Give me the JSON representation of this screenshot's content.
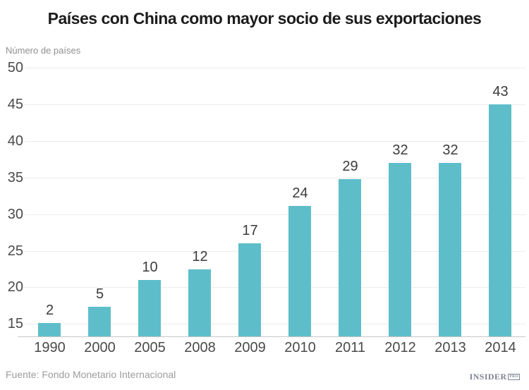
{
  "title": "Países con China como mayor socio de sus exportaciones",
  "chart_data": {
    "type": "bar",
    "categories": [
      "1990",
      "2000",
      "2005",
      "2008",
      "2009",
      "2010",
      "2011",
      "2012",
      "2013",
      "2014"
    ],
    "values": [
      2,
      5,
      10,
      12,
      17,
      24,
      29,
      32,
      32,
      43
    ],
    "title": "Países con China como mayor socio de sus exportaciones",
    "xlabel": "",
    "ylabel": "Número de países",
    "y_ticks": [
      15,
      20,
      25,
      30,
      35,
      40,
      45,
      50
    ],
    "ylim": [
      13.3,
      50
    ],
    "grid": true,
    "legend": false,
    "bar_color": "#5dbeca",
    "grid_color": "#ececec",
    "axis_line_color": "#c6c6c6",
    "tick_label_color": "#4a4a4a",
    "data_label_color": "#3b3b3b"
  },
  "footer": {
    "source": "Fuente: Fondo Monetario Internacional",
    "logo_text": "INSIDER",
    "logo_badge": "PRO"
  }
}
